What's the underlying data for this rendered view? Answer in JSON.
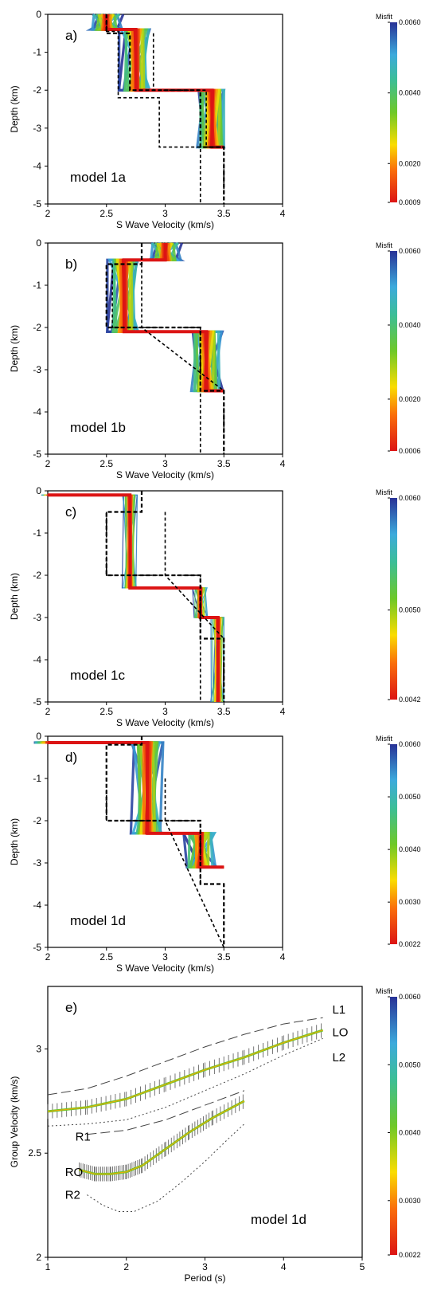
{
  "chart_data": [
    {
      "panel": "a)",
      "type": "line",
      "model_label": "model 1a",
      "xlabel": "S Wave Velocity (km/s)",
      "ylabel": "Depth (km)",
      "xlim": [
        2,
        4
      ],
      "ylim": [
        -5,
        0
      ],
      "xticks": [
        "2",
        "2.5",
        "3",
        "3.5",
        "4"
      ],
      "yticks": [
        "0",
        "-1",
        "-2",
        "-3",
        "-4",
        "-5"
      ],
      "colorbar": {
        "title": "Misfit",
        "ticks": [
          "0.0060",
          "0.0040",
          "0.0020",
          "0.0009"
        ],
        "min": 0.0009,
        "max": 0.006
      },
      "true_model": {
        "x": [
          2.5,
          2.5,
          2.7,
          2.7,
          3.3,
          3.3,
          3.5,
          3.5
        ],
        "y": [
          0,
          -0.5,
          -0.5,
          -2,
          -2,
          -3.5,
          -3.5,
          -5
        ]
      },
      "model_bounds": {
        "left": {
          "x": [
            2.5,
            2.5,
            2.6,
            2.6,
            2.95,
            2.95,
            3.3,
            3.3
          ],
          "y": [
            0,
            -0.45,
            -0.45,
            -2.2,
            -2.2,
            -3.5,
            -3.5,
            -5
          ]
        },
        "right": {
          "x": [
            2.9,
            2.9,
            3.35,
            3.35,
            3.5,
            3.5
          ],
          "y": [
            -0.5,
            -2,
            -2,
            -3.5,
            -3.5,
            -5
          ]
        }
      },
      "best_fit": {
        "x": [
          2.5,
          2.5,
          2.75,
          2.75,
          3.4,
          3.4,
          3.5
        ],
        "y": [
          0,
          -0.4,
          -0.4,
          -2.0,
          -2.0,
          -3.5,
          -3.5
        ]
      }
    },
    {
      "panel": "b)",
      "type": "line",
      "model_label": "model 1b",
      "xlabel": "S Wave Velocity (km/s)",
      "ylabel": "Depth (km)",
      "xlim": [
        2,
        4
      ],
      "ylim": [
        -5,
        0
      ],
      "xticks": [
        "2",
        "2.5",
        "3",
        "3.5",
        "4"
      ],
      "yticks": [
        "0",
        "-1",
        "-2",
        "-3",
        "-4",
        "-5"
      ],
      "colorbar": {
        "title": "Misfit",
        "ticks": [
          "0.0060",
          "0.0040",
          "0.0020",
          "0.0006"
        ],
        "min": 0.0006,
        "max": 0.006
      },
      "true_model": {
        "x": [
          2.8,
          2.8,
          2.5,
          2.5,
          3.3,
          3.3,
          3.5,
          3.5
        ],
        "y": [
          0,
          -0.5,
          -0.5,
          -2,
          -2,
          -3.5,
          -3.5,
          -5
        ]
      },
      "model_bounds": {
        "left": {
          "x": [
            2.55,
            2.55,
            2.55,
            3.3,
            3.3
          ],
          "y": [
            -0.5,
            -2,
            -2,
            -2,
            -5
          ]
        },
        "right": {
          "x": [
            2.8,
            2.8,
            3.5,
            3.5
          ],
          "y": [
            -0.5,
            -2,
            -3.5,
            -5
          ]
        }
      },
      "best_fit": {
        "x": [
          3.0,
          3.0,
          2.65,
          2.65,
          3.35,
          3.35,
          3.5
        ],
        "y": [
          0,
          -0.4,
          -0.4,
          -2.1,
          -2.1,
          -3.5,
          -3.5
        ]
      }
    },
    {
      "panel": "c)",
      "type": "line",
      "model_label": "model 1c",
      "xlabel": "S Wave Velocity (km/s)",
      "ylabel": "Depth (km)",
      "xlim": [
        2,
        4
      ],
      "ylim": [
        -5,
        0
      ],
      "xticks": [
        "2",
        "2.5",
        "3",
        "3.5",
        "4"
      ],
      "yticks": [
        "0",
        "-1",
        "-2",
        "-3",
        "-4",
        "-5"
      ],
      "colorbar": {
        "title": "Misfit",
        "ticks": [
          "0.0060",
          "0.0050",
          "0.0042"
        ],
        "min": 0.0042,
        "max": 0.006
      },
      "true_model": {
        "x": [
          2.8,
          2.8,
          2.5,
          2.5,
          3.3,
          3.3,
          3.5,
          3.5
        ],
        "y": [
          0,
          -0.5,
          -0.5,
          -2,
          -2,
          -3.5,
          -3.5,
          -5
        ]
      },
      "model_bounds": {
        "left": {
          "x": [
            2.5,
            2.5,
            3.3,
            3.3
          ],
          "y": [
            -0.5,
            -2,
            -2,
            -5
          ]
        },
        "right": {
          "x": [
            3.0,
            3.0,
            3.5,
            3.5
          ],
          "y": [
            -0.5,
            -2,
            -3.5,
            -5
          ]
        }
      },
      "best_fit": {
        "x": [
          2.0,
          2.7,
          2.7,
          3.3,
          3.3,
          3.45,
          3.45
        ],
        "y": [
          -0.1,
          -0.1,
          -2.3,
          -2.3,
          -3.0,
          -3.0,
          -5
        ]
      }
    },
    {
      "panel": "d)",
      "type": "line",
      "model_label": "model 1d",
      "xlabel": "S Wave Velocity (km/s)",
      "ylabel": "Depth (km)",
      "xlim": [
        2,
        4
      ],
      "ylim": [
        -5,
        0
      ],
      "xticks": [
        "2",
        "2.5",
        "3",
        "3.5",
        "4"
      ],
      "yticks": [
        "0",
        "-1",
        "-2",
        "-3",
        "-4",
        "-5"
      ],
      "colorbar": {
        "title": "Misfit",
        "ticks": [
          "0.0060",
          "0.0050",
          "0.0040",
          "0.0030",
          "0.0022"
        ],
        "min": 0.0022,
        "max": 0.006
      },
      "true_model": {
        "x": [
          2.8,
          2.8,
          2.5,
          2.5,
          3.3,
          3.3,
          3.5,
          3.5
        ],
        "y": [
          0,
          -0.2,
          -0.2,
          -2,
          -2,
          -3.5,
          -3.5,
          -5
        ]
      },
      "model_bounds": {
        "left": {
          "x": [
            2.5,
            2.5,
            3.3,
            3.3
          ],
          "y": [
            -1,
            -2,
            -2,
            -3.5
          ]
        },
        "right": {
          "x": [
            3.0,
            3.0,
            3.5
          ],
          "y": [
            -1,
            -2,
            -5
          ]
        }
      },
      "best_fit": {
        "x": [
          2.0,
          2.85,
          2.85,
          3.3,
          3.3,
          3.5
        ],
        "y": [
          -0.15,
          -0.15,
          -2.3,
          -2.3,
          -3.1,
          -3.1
        ]
      }
    },
    {
      "panel": "e)",
      "type": "line",
      "model_label": "model 1d",
      "xlabel": "Period (s)",
      "ylabel": "Group Velocity (km/s)",
      "xlim": [
        1,
        5
      ],
      "ylim": [
        2,
        3.3
      ],
      "xticks": [
        "1",
        "2",
        "3",
        "4",
        "5"
      ],
      "yticks": [
        "2",
        "2.5",
        "3"
      ],
      "colorbar": {
        "title": "Misfit",
        "ticks": [
          "0.0060",
          "0.0050",
          "0.0040",
          "0.0030",
          "0.0022"
        ],
        "min": 0.0022,
        "max": 0.006
      },
      "curve_labels": [
        "L1",
        "LO",
        "L2",
        "R1",
        "RO",
        "R2"
      ],
      "series": [
        {
          "name": "L1",
          "x": [
            1,
            1.5,
            2,
            2.5,
            3,
            3.5,
            4,
            4.5
          ],
          "y": [
            2.78,
            2.81,
            2.87,
            2.94,
            3.01,
            3.07,
            3.12,
            3.15
          ]
        },
        {
          "name": "LO",
          "x": [
            1,
            1.5,
            2,
            2.5,
            3,
            3.5,
            4,
            4.5
          ],
          "y": [
            2.7,
            2.72,
            2.76,
            2.83,
            2.9,
            2.96,
            3.03,
            3.09
          ]
        },
        {
          "name": "L2",
          "x": [
            1,
            1.5,
            2,
            2.5,
            3,
            3.5,
            4,
            4.5
          ],
          "y": [
            2.63,
            2.64,
            2.66,
            2.72,
            2.8,
            2.88,
            2.97,
            3.05
          ]
        },
        {
          "name": "R1",
          "x": [
            1.5,
            2,
            2.5,
            3,
            3.5
          ],
          "y": [
            2.59,
            2.61,
            2.66,
            2.73,
            2.8
          ]
        },
        {
          "name": "RO",
          "x": [
            1.4,
            1.6,
            1.8,
            2,
            2.2,
            2.5,
            2.8,
            3.1,
            3.5
          ],
          "y": [
            2.42,
            2.4,
            2.4,
            2.41,
            2.44,
            2.52,
            2.6,
            2.67,
            2.75
          ]
        },
        {
          "name": "R2",
          "x": [
            1.5,
            1.7,
            1.9,
            2.1,
            2.4,
            2.7,
            3,
            3.3,
            3.5
          ],
          "y": [
            2.3,
            2.25,
            2.22,
            2.22,
            2.27,
            2.36,
            2.46,
            2.57,
            2.64
          ]
        }
      ]
    }
  ]
}
